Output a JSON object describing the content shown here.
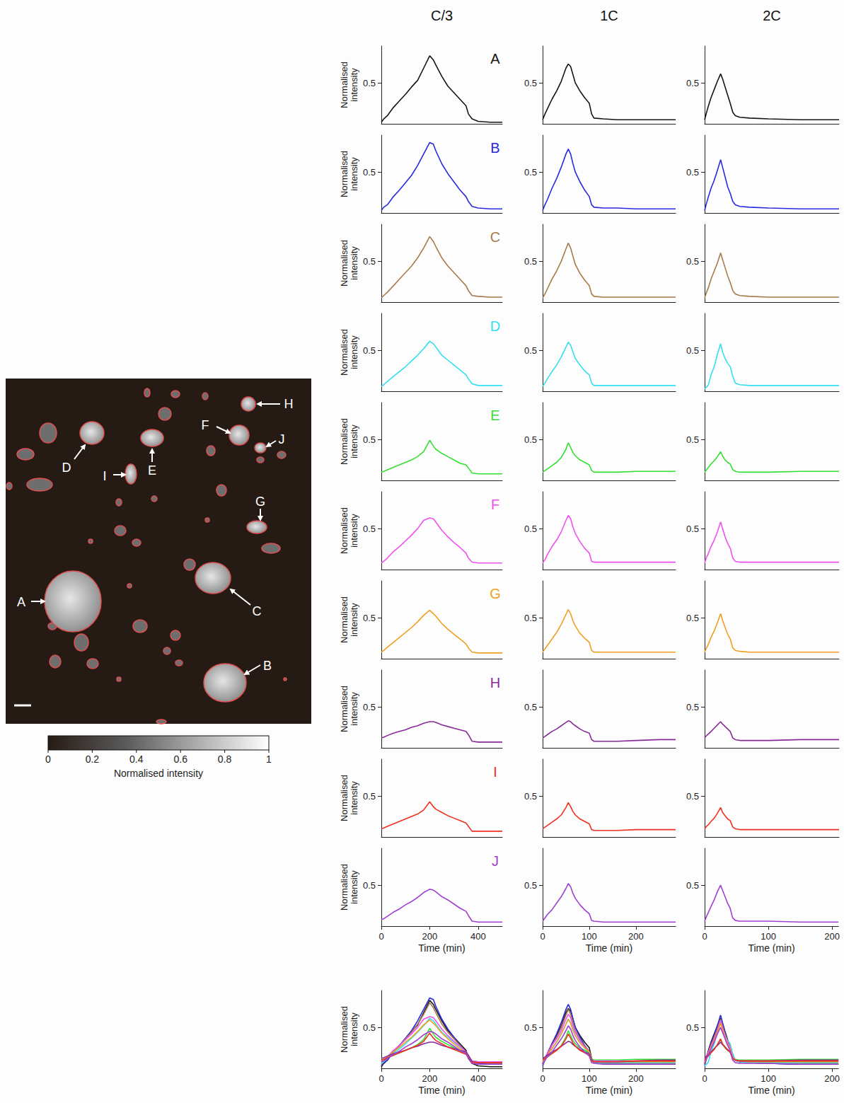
{
  "chart_data": [
    {
      "type": "line",
      "title": "C/3",
      "x_label": "Time (min)",
      "y_label": "Normalised intensity",
      "x": [
        0,
        10,
        25,
        50,
        75,
        100,
        125,
        150,
        175,
        200,
        215,
        225,
        250,
        275,
        300,
        325,
        350,
        360,
        375,
        400,
        450,
        500
      ],
      "xlim": [
        0,
        500
      ],
      "xticks": [
        0,
        200,
        400
      ],
      "ylim": [
        0,
        0.95
      ],
      "yticks": [
        0.5
      ],
      "series": [
        {
          "name": "A",
          "color": "#1a1311",
          "values": [
            0.02,
            0.06,
            0.1,
            0.2,
            0.28,
            0.36,
            0.45,
            0.53,
            0.68,
            0.83,
            0.78,
            0.72,
            0.58,
            0.46,
            0.38,
            0.3,
            0.22,
            0.12,
            0.06,
            0.03,
            0.02,
            0.02
          ]
        },
        {
          "name": "B",
          "color": "#2929e0",
          "values": [
            0.03,
            0.07,
            0.1,
            0.2,
            0.28,
            0.37,
            0.46,
            0.58,
            0.72,
            0.86,
            0.84,
            0.76,
            0.6,
            0.48,
            0.38,
            0.28,
            0.2,
            0.14,
            0.08,
            0.06,
            0.05,
            0.05
          ]
        },
        {
          "name": "C",
          "color": "#a87a4a",
          "values": [
            0.05,
            0.08,
            0.12,
            0.2,
            0.28,
            0.36,
            0.44,
            0.54,
            0.66,
            0.8,
            0.74,
            0.68,
            0.54,
            0.44,
            0.36,
            0.28,
            0.2,
            0.14,
            0.08,
            0.07,
            0.06,
            0.06
          ]
        },
        {
          "name": "D",
          "color": "#33e0f0",
          "values": [
            0.06,
            0.08,
            0.12,
            0.18,
            0.24,
            0.3,
            0.37,
            0.44,
            0.52,
            0.61,
            0.58,
            0.54,
            0.44,
            0.38,
            0.32,
            0.26,
            0.2,
            0.15,
            0.09,
            0.07,
            0.07,
            0.07
          ]
        },
        {
          "name": "E",
          "color": "#33e033",
          "values": [
            0.1,
            0.11,
            0.13,
            0.16,
            0.19,
            0.22,
            0.25,
            0.29,
            0.35,
            0.49,
            0.42,
            0.38,
            0.33,
            0.29,
            0.25,
            0.21,
            0.19,
            0.15,
            0.09,
            0.08,
            0.08,
            0.08
          ]
        },
        {
          "name": "F",
          "color": "#f050f0",
          "values": [
            0.08,
            0.1,
            0.14,
            0.22,
            0.28,
            0.35,
            0.42,
            0.5,
            0.6,
            0.63,
            0.62,
            0.58,
            0.48,
            0.4,
            0.33,
            0.27,
            0.2,
            0.14,
            0.09,
            0.08,
            0.08,
            0.08
          ]
        },
        {
          "name": "G",
          "color": "#f0a020",
          "values": [
            0.08,
            0.1,
            0.14,
            0.2,
            0.26,
            0.32,
            0.38,
            0.45,
            0.53,
            0.59,
            0.55,
            0.52,
            0.43,
            0.36,
            0.3,
            0.24,
            0.18,
            0.13,
            0.08,
            0.07,
            0.07,
            0.07
          ]
        },
        {
          "name": "H",
          "color": "#8a2a9a",
          "values": [
            0.12,
            0.13,
            0.15,
            0.18,
            0.2,
            0.22,
            0.25,
            0.27,
            0.3,
            0.32,
            0.32,
            0.31,
            0.28,
            0.26,
            0.24,
            0.22,
            0.2,
            0.16,
            0.08,
            0.07,
            0.07,
            0.07
          ]
        },
        {
          "name": "I",
          "color": "#f03020",
          "values": [
            0.1,
            0.11,
            0.13,
            0.16,
            0.19,
            0.22,
            0.25,
            0.28,
            0.33,
            0.43,
            0.37,
            0.34,
            0.3,
            0.26,
            0.23,
            0.2,
            0.17,
            0.13,
            0.07,
            0.07,
            0.07,
            0.07
          ]
        },
        {
          "name": "J",
          "color": "#a040d0",
          "values": [
            0.08,
            0.09,
            0.12,
            0.17,
            0.21,
            0.26,
            0.3,
            0.35,
            0.41,
            0.45,
            0.44,
            0.42,
            0.36,
            0.32,
            0.27,
            0.22,
            0.18,
            0.13,
            0.06,
            0.05,
            0.05,
            0.05
          ]
        }
      ]
    },
    {
      "type": "line",
      "title": "1C",
      "x_label": "Time (min)",
      "y_label": "Normalised intensity",
      "x": [
        0,
        5,
        10,
        20,
        30,
        40,
        50,
        55,
        60,
        65,
        70,
        80,
        90,
        100,
        105,
        110,
        130,
        160,
        200,
        250,
        285
      ],
      "xlim": [
        0,
        285
      ],
      "xticks": [
        0,
        100,
        200
      ],
      "ylim": [
        0,
        0.95
      ],
      "yticks": [
        0.5
      ],
      "series": [
        {
          "name": "A",
          "color": "#1a1311",
          "values": [
            0.05,
            0.12,
            0.18,
            0.3,
            0.4,
            0.52,
            0.68,
            0.73,
            0.7,
            0.6,
            0.5,
            0.4,
            0.32,
            0.25,
            0.12,
            0.07,
            0.06,
            0.05,
            0.05,
            0.05,
            0.05
          ]
        },
        {
          "name": "B",
          "color": "#2929e0",
          "values": [
            0.03,
            0.1,
            0.16,
            0.3,
            0.42,
            0.56,
            0.72,
            0.78,
            0.72,
            0.6,
            0.5,
            0.38,
            0.28,
            0.2,
            0.1,
            0.07,
            0.06,
            0.06,
            0.05,
            0.05,
            0.05
          ]
        },
        {
          "name": "C",
          "color": "#a87a4a",
          "values": [
            0.05,
            0.1,
            0.16,
            0.28,
            0.38,
            0.5,
            0.65,
            0.72,
            0.66,
            0.56,
            0.46,
            0.35,
            0.27,
            0.2,
            0.1,
            0.07,
            0.06,
            0.06,
            0.06,
            0.06,
            0.06
          ]
        },
        {
          "name": "D",
          "color": "#33e0f0",
          "values": [
            0.06,
            0.1,
            0.15,
            0.24,
            0.32,
            0.42,
            0.54,
            0.6,
            0.56,
            0.48,
            0.4,
            0.32,
            0.25,
            0.2,
            0.1,
            0.07,
            0.07,
            0.07,
            0.07,
            0.07,
            0.07
          ]
        },
        {
          "name": "E",
          "color": "#33e033",
          "values": [
            0.1,
            0.12,
            0.14,
            0.18,
            0.22,
            0.28,
            0.38,
            0.46,
            0.4,
            0.34,
            0.3,
            0.25,
            0.22,
            0.19,
            0.12,
            0.1,
            0.1,
            0.1,
            0.11,
            0.11,
            0.11
          ]
        },
        {
          "name": "F",
          "color": "#f050f0",
          "values": [
            0.08,
            0.12,
            0.18,
            0.28,
            0.36,
            0.46,
            0.6,
            0.66,
            0.62,
            0.52,
            0.44,
            0.34,
            0.26,
            0.2,
            0.1,
            0.09,
            0.09,
            0.09,
            0.09,
            0.09,
            0.09
          ]
        },
        {
          "name": "G",
          "color": "#f0a020",
          "values": [
            0.08,
            0.12,
            0.16,
            0.24,
            0.32,
            0.42,
            0.54,
            0.6,
            0.55,
            0.46,
            0.4,
            0.31,
            0.25,
            0.2,
            0.1,
            0.08,
            0.08,
            0.08,
            0.08,
            0.08,
            0.08
          ]
        },
        {
          "name": "H",
          "color": "#8a2a9a",
          "values": [
            0.12,
            0.14,
            0.16,
            0.2,
            0.23,
            0.27,
            0.31,
            0.33,
            0.32,
            0.29,
            0.27,
            0.23,
            0.2,
            0.18,
            0.1,
            0.08,
            0.08,
            0.08,
            0.09,
            0.1,
            0.1
          ]
        },
        {
          "name": "I",
          "color": "#f03020",
          "values": [
            0.1,
            0.12,
            0.14,
            0.18,
            0.22,
            0.27,
            0.36,
            0.42,
            0.37,
            0.31,
            0.27,
            0.22,
            0.19,
            0.16,
            0.09,
            0.08,
            0.08,
            0.08,
            0.09,
            0.09,
            0.09
          ]
        },
        {
          "name": "J",
          "color": "#a040d0",
          "values": [
            0.06,
            0.1,
            0.14,
            0.2,
            0.28,
            0.36,
            0.46,
            0.52,
            0.48,
            0.4,
            0.34,
            0.26,
            0.2,
            0.15,
            0.07,
            0.06,
            0.05,
            0.05,
            0.05,
            0.05,
            0.05
          ]
        }
      ]
    },
    {
      "type": "line",
      "title": "2C",
      "x_label": "Time (min)",
      "y_label": "Normalised intensity",
      "x": [
        0,
        3,
        6,
        10,
        15,
        20,
        25,
        28,
        32,
        36,
        40,
        44,
        48,
        55,
        70,
        100,
        150,
        210
      ],
      "xlim": [
        0,
        210
      ],
      "xticks": [
        0,
        100,
        200
      ],
      "ylim": [
        0,
        0.95
      ],
      "yticks": [
        0.5
      ],
      "series": [
        {
          "name": "A",
          "color": "#1a1311",
          "values": [
            0.05,
            0.14,
            0.22,
            0.32,
            0.42,
            0.52,
            0.61,
            0.55,
            0.45,
            0.35,
            0.25,
            0.14,
            0.1,
            0.08,
            0.07,
            0.06,
            0.05,
            0.05
          ]
        },
        {
          "name": "B",
          "color": "#2929e0",
          "values": [
            0.03,
            0.12,
            0.2,
            0.3,
            0.4,
            0.52,
            0.65,
            0.56,
            0.44,
            0.32,
            0.24,
            0.14,
            0.1,
            0.08,
            0.07,
            0.06,
            0.05,
            0.05
          ]
        },
        {
          "name": "C",
          "color": "#a87a4a",
          "values": [
            0.05,
            0.12,
            0.18,
            0.28,
            0.38,
            0.48,
            0.6,
            0.52,
            0.42,
            0.32,
            0.24,
            0.14,
            0.1,
            0.08,
            0.07,
            0.06,
            0.06,
            0.06
          ]
        },
        {
          "name": "D",
          "color": "#33e0f0",
          "values": [
            0.03,
            0.05,
            0.08,
            0.2,
            0.3,
            0.45,
            0.58,
            0.48,
            0.4,
            0.34,
            0.3,
            0.18,
            0.1,
            0.08,
            0.07,
            0.07,
            0.07,
            0.07
          ]
        },
        {
          "name": "E",
          "color": "#33e033",
          "values": [
            0.1,
            0.13,
            0.16,
            0.2,
            0.24,
            0.29,
            0.35,
            0.3,
            0.25,
            0.22,
            0.2,
            0.13,
            0.11,
            0.1,
            0.1,
            0.1,
            0.11,
            0.11
          ]
        },
        {
          "name": "F",
          "color": "#f050f0",
          "values": [
            0.08,
            0.15,
            0.2,
            0.28,
            0.36,
            0.46,
            0.58,
            0.5,
            0.4,
            0.32,
            0.26,
            0.14,
            0.1,
            0.09,
            0.09,
            0.09,
            0.09,
            0.09
          ]
        },
        {
          "name": "G",
          "color": "#f0a020",
          "values": [
            0.08,
            0.13,
            0.18,
            0.26,
            0.34,
            0.44,
            0.55,
            0.47,
            0.38,
            0.3,
            0.24,
            0.13,
            0.1,
            0.09,
            0.08,
            0.08,
            0.08,
            0.08
          ]
        },
        {
          "name": "H",
          "color": "#8a2a9a",
          "values": [
            0.12,
            0.15,
            0.17,
            0.2,
            0.24,
            0.28,
            0.32,
            0.29,
            0.26,
            0.23,
            0.2,
            0.12,
            0.1,
            0.09,
            0.09,
            0.09,
            0.1,
            0.1
          ]
        },
        {
          "name": "I",
          "color": "#f03020",
          "values": [
            0.1,
            0.13,
            0.15,
            0.19,
            0.23,
            0.29,
            0.36,
            0.3,
            0.26,
            0.22,
            0.2,
            0.12,
            0.1,
            0.09,
            0.09,
            0.09,
            0.09,
            0.09
          ]
        },
        {
          "name": "J",
          "color": "#a040d0",
          "values": [
            0.06,
            0.12,
            0.17,
            0.24,
            0.32,
            0.42,
            0.5,
            0.44,
            0.36,
            0.28,
            0.22,
            0.1,
            0.07,
            0.06,
            0.06,
            0.06,
            0.05,
            0.05
          ]
        }
      ]
    }
  ],
  "image": {
    "colorbar": {
      "label": "Normalised intensity",
      "range": [
        0,
        1
      ],
      "ticks": [
        0,
        0.2,
        0.4,
        0.6,
        0.8,
        1
      ]
    }
  }
}
